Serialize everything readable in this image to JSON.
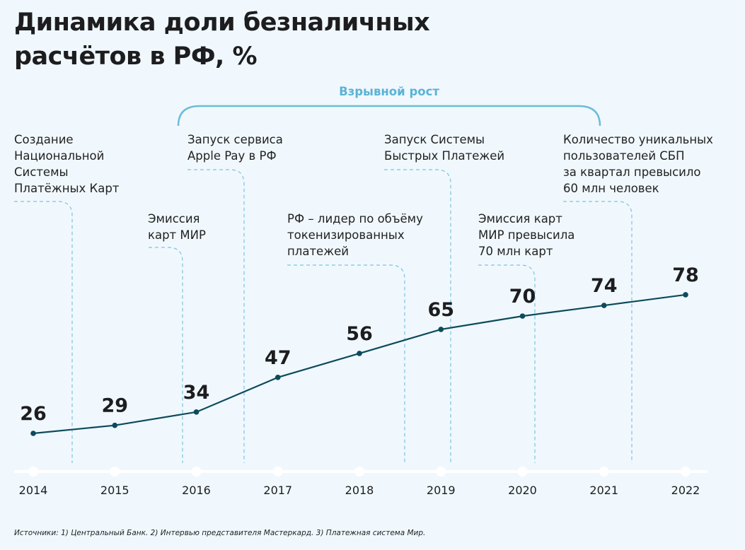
{
  "title": "Динамика доли безналичных\nрасчётов в РФ, %",
  "bracket_label": "Взрывной рост",
  "annotations": [
    {
      "text": "Создание\nНациональной\nСистемы\nПлатёжных Карт",
      "year_between": "2014–2015"
    },
    {
      "text": "Эмиссия\nкарт МИР",
      "year_between": "2015–2016"
    },
    {
      "text": "Запуск сервиса\nApple Pay в РФ",
      "year_between": "2016–2017"
    },
    {
      "text": "РФ – лидер по объёму\nтокенизированных\nплатежей",
      "year_between": "2018–2019"
    },
    {
      "text": "Запуск Системы\nБыстрых Платежей",
      "year_between": "2019"
    },
    {
      "text": "Эмиссия карт\nМИР превысила\n70 млн карт",
      "year_between": "2020"
    },
    {
      "text": "Количество уникальных\nпользователей СБП\nза квартал превысило\n60 млн человек",
      "year_between": "2021"
    }
  ],
  "source": "Источники: 1) Центральный Банк. 2) Интервью представителя Мастеркард. 3) Платежная система Мир.",
  "colors": {
    "line": "#0d4a5c",
    "dashed": "#7cc4de",
    "bracket": "#6bbcd8",
    "background": "#f0f8fd",
    "axis": "#ffffff"
  },
  "chart_data": {
    "type": "line",
    "title": "Динамика доли безналичных расчётов в РФ, %",
    "categories": [
      "2014",
      "2015",
      "2016",
      "2017",
      "2018",
      "2019",
      "2020",
      "2021",
      "2022"
    ],
    "values": [
      26,
      29,
      34,
      47,
      56,
      65,
      70,
      74,
      78
    ],
    "data_labels": true,
    "grid": false
  }
}
